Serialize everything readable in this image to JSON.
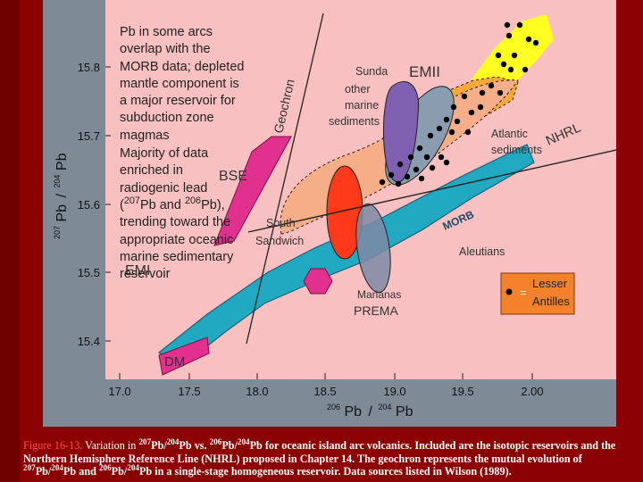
{
  "axes": {
    "x_label_mass": "206",
    "x_label_elem": "Pb",
    "x_label_sep": "/",
    "x_label_mass2": "204",
    "x_label_elem2": "Pb",
    "y_label_mass": "207",
    "y_label_elem": "Pb",
    "y_label_sep": "/",
    "y_label_mass2": "204",
    "y_label_elem2": "Pb",
    "x_ticks": [
      "17.0",
      "17.5",
      "18.0",
      "18.5",
      "19.0",
      "19.5",
      "2.00"
    ],
    "y_ticks": [
      "15.8",
      "15.7",
      "15.6",
      "15.5",
      "15.4"
    ]
  },
  "labels": {
    "geochron": "Geochron",
    "sunda": "Sunda",
    "emii": "EMII",
    "other_marine_sediments": [
      "other",
      "marine",
      "sediments"
    ],
    "atlantic_sediments": [
      "Atlantic",
      "sediments"
    ],
    "nhrl": "NHRL",
    "bse": "BSE",
    "morb": "MORB",
    "south_sandwich": [
      "South",
      "Sandwich"
    ],
    "aleutians": "Aleutians",
    "emi": "EMI",
    "marianas": "Marianas",
    "prema": "PREMA",
    "dm": "DM"
  },
  "legend": {
    "equals": "=",
    "text_line1": "Lesser",
    "text_line2": "Antilles"
  },
  "annotation": {
    "part1": "Pb in some arcs overlap with the MORB data; depleted mantle component is a major reservoir for subduction zone magmas",
    "part2_a": "Majority of data enriched in radiogenic lead (",
    "m207": "207",
    "pb_a": "Pb and ",
    "m206": "206",
    "pb_b": "Pb), trending toward the appropriate oceanic marine sedimentary reservoir"
  },
  "caption": {
    "figure_label": "Figure 16-13.",
    "t1": " Variation in ",
    "m207a": "207",
    "t2": "Pb/",
    "m204a": "204",
    "t3": "Pb vs. ",
    "m206a": "206",
    "t4": "Pb/",
    "m204b": "204",
    "t5": "Pb for oceanic island arc volcanics. Included are the isotopic reservoirs and the Northern Hemisphere Reference Line (NHRL) proposed in Chapter 14. The geochron represents the mutual evolution of ",
    "m207b": "207",
    "t6": "Pb/",
    "m204c": "204",
    "t7": "Pb and ",
    "m206b": "206",
    "t8": "Pb/",
    "m204d": "204",
    "t9": "Pb in a single-stage homogeneous reservoir. Data sources listed in Wilson (1989)."
  },
  "colors": {
    "plot_bg": "#f8c0c0",
    "morb_fill": "#22a9c2",
    "emii_yellow": "#ffff22",
    "emii_orange": "#f8a838",
    "sediment_fill": "#f5ae88",
    "sunda_fill": "#7e5fb0",
    "south_sandwich_fill": "#ff3a1a",
    "marianas_fill": "#7e8aa6",
    "reservoir_magenta": "#e2308e",
    "legend_orange": "#f5822a"
  },
  "dots": [
    [
      568,
      28
    ],
    [
      582,
      28
    ],
    [
      570,
      40
    ],
    [
      592,
      44
    ],
    [
      600,
      48
    ],
    [
      558,
      62
    ],
    [
      576,
      62
    ],
    [
      564,
      72
    ],
    [
      572,
      78
    ],
    [
      588,
      78
    ],
    [
      550,
      96
    ],
    [
      540,
      104
    ],
    [
      560,
      104
    ],
    [
      520,
      108
    ],
    [
      538,
      120
    ],
    [
      508,
      120
    ],
    [
      528,
      126
    ],
    [
      500,
      134
    ],
    [
      512,
      136
    ],
    [
      492,
      144
    ],
    [
      506,
      148
    ],
    [
      524,
      148
    ],
    [
      482,
      152
    ],
    [
      470,
      166
    ],
    [
      460,
      176
    ],
    [
      478,
      176
    ],
    [
      494,
      176
    ],
    [
      500,
      182
    ],
    [
      448,
      184
    ],
    [
      466,
      190
    ],
    [
      484,
      188
    ],
    [
      438,
      196
    ],
    [
      456,
      198
    ],
    [
      472,
      200
    ],
    [
      428,
      204
    ],
    [
      446,
      206
    ]
  ]
}
